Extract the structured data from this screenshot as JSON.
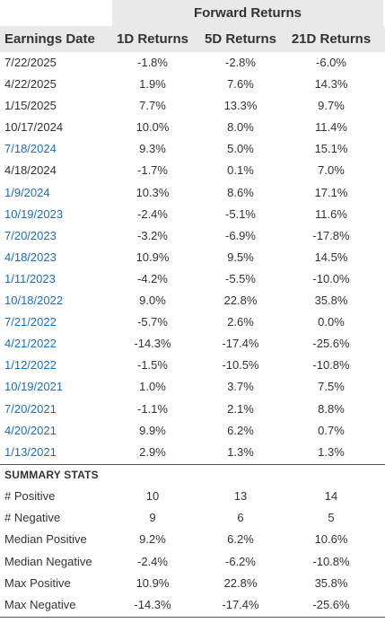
{
  "header": {
    "group_label": "Forward Returns",
    "columns": [
      "Earnings Date",
      "1D Returns",
      "5D Returns",
      "21D Returns"
    ]
  },
  "rows": [
    {
      "date": "7/22/2025",
      "d1": "-1.8%",
      "d5": "-2.8%",
      "d21": "-6.0%",
      "link": false
    },
    {
      "date": "4/22/2025",
      "d1": "1.9%",
      "d5": "7.6%",
      "d21": "14.3%",
      "link": false
    },
    {
      "date": "1/15/2025",
      "d1": "7.7%",
      "d5": "13.3%",
      "d21": "9.7%",
      "link": false
    },
    {
      "date": "10/17/2024",
      "d1": "10.0%",
      "d5": "8.0%",
      "d21": "11.4%",
      "link": false
    },
    {
      "date": "7/18/2024",
      "d1": "9.3%",
      "d5": "5.0%",
      "d21": "15.1%",
      "link": true
    },
    {
      "date": "4/18/2024",
      "d1": "-1.7%",
      "d5": "0.1%",
      "d21": "7.0%",
      "link": false
    },
    {
      "date": "1/9/2024",
      "d1": "10.3%",
      "d5": "8.6%",
      "d21": "17.1%",
      "link": true
    },
    {
      "date": "10/19/2023",
      "d1": "-2.4%",
      "d5": "-5.1%",
      "d21": "11.6%",
      "link": true
    },
    {
      "date": "7/20/2023",
      "d1": "-3.2%",
      "d5": "-6.9%",
      "d21": "-17.8%",
      "link": true
    },
    {
      "date": "4/18/2023",
      "d1": "10.9%",
      "d5": "9.5%",
      "d21": "14.5%",
      "link": true
    },
    {
      "date": "1/11/2023",
      "d1": "-4.2%",
      "d5": "-5.5%",
      "d21": "-10.0%",
      "link": true
    },
    {
      "date": "10/18/2022",
      "d1": "9.0%",
      "d5": "22.8%",
      "d21": "35.8%",
      "link": true
    },
    {
      "date": "7/21/2022",
      "d1": "-5.7%",
      "d5": "2.6%",
      "d21": "0.0%",
      "link": true
    },
    {
      "date": "4/21/2022",
      "d1": "-14.3%",
      "d5": "-17.4%",
      "d21": "-25.6%",
      "link": true
    },
    {
      "date": "1/12/2022",
      "d1": "-1.5%",
      "d5": "-10.5%",
      "d21": "-10.8%",
      "link": true
    },
    {
      "date": "10/19/2021",
      "d1": "1.0%",
      "d5": "3.7%",
      "d21": "7.5%",
      "link": true
    },
    {
      "date": "7/20/2021",
      "d1": "-1.1%",
      "d5": "2.1%",
      "d21": "8.8%",
      "link": true
    },
    {
      "date": "4/20/2021",
      "d1": "9.9%",
      "d5": "6.2%",
      "d21": "0.7%",
      "link": true
    },
    {
      "date": "1/13/2021",
      "d1": "2.9%",
      "d5": "1.3%",
      "d21": "1.3%",
      "link": true
    }
  ],
  "summary": {
    "title": "SUMMARY STATS",
    "rows": [
      {
        "label": "# Positive",
        "d1": "10",
        "d5": "13",
        "d21": "14"
      },
      {
        "label": "# Negative",
        "d1": "9",
        "d5": "6",
        "d21": "5"
      },
      {
        "label": "Median Positive",
        "d1": "9.2%",
        "d5": "6.2%",
        "d21": "10.6%"
      },
      {
        "label": "Median Negative",
        "d1": "-2.4%",
        "d5": "-6.2%",
        "d21": "-10.8%"
      },
      {
        "label": "Max Positive",
        "d1": "10.9%",
        "d5": "22.8%",
        "d21": "35.8%"
      },
      {
        "label": "Max Negative",
        "d1": "-14.3%",
        "d5": "-17.4%",
        "d21": "-25.6%"
      }
    ]
  },
  "colors": {
    "header_bg": "#e9e9e9",
    "text": "#333333",
    "link": "#1f6faf",
    "divider": "#555555"
  }
}
